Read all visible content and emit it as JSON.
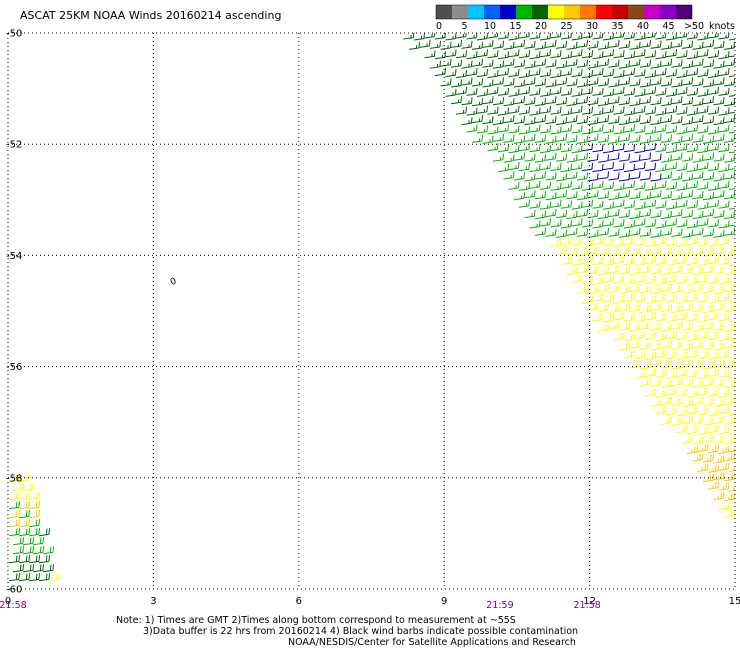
{
  "header": {
    "title": "ASCAT 25KM NOAA Winds 20160214 ascending"
  },
  "chart_data": {
    "type": "scatter",
    "title": "ASCAT 25KM NOAA Winds 20160214 ascending",
    "xlim": [
      0,
      15
    ],
    "ylim": [
      -60,
      -50
    ],
    "x_ticks": [
      "0",
      "3",
      "6",
      "9",
      "12",
      "15"
    ],
    "y_ticks": [
      "-50",
      "-52",
      "-54",
      "-56",
      "-58",
      "-60"
    ],
    "y_tick_values": [
      -50,
      -52,
      -54,
      -56,
      -58,
      -60
    ],
    "grid": true,
    "legend": {
      "placement": "top-right",
      "unit_label": "knots",
      "labels": [
        "0",
        "5",
        "10",
        "15",
        "20",
        "25",
        "30",
        "35",
        "40",
        "45",
        ">50"
      ],
      "colors": [
        "#505050",
        "#8c8c8c",
        "#00c8ff",
        "#0064ff",
        "#0000c8",
        "#00b400",
        "#006400",
        "#ffff00",
        "#ffc800",
        "#ff7800",
        "#ff0000",
        "#c80000",
        "#8c4614",
        "#c800c8",
        "#8c00c8",
        "#500078"
      ]
    },
    "time_labels": [
      {
        "x": 0.0,
        "text": "21:58"
      },
      {
        "x": 10.15,
        "text": "21:59"
      },
      {
        "x": 11.95,
        "text": "21:58"
      }
    ],
    "annotation": {
      "x": 3.4,
      "y": -54.45,
      "text": "0"
    },
    "swaths": {
      "main": {
        "edge_top_x": 8.05,
        "edge_bottom_x": 15.0,
        "edge_bottom_y": -59.05,
        "regions": [
          {
            "from_y": -50.0,
            "to_y": -51.7,
            "wind_knots": 17,
            "color": "#006400"
          },
          {
            "from_y": -51.7,
            "to_y": -53.7,
            "wind_knots": 17,
            "color": "#00b400"
          },
          {
            "from_y": -52.1,
            "to_y": -52.7,
            "x_from": 11.8,
            "x_to": 13.3,
            "wind_knots": 12,
            "color": "#0000c8"
          },
          {
            "from_y": -53.7,
            "to_y": -59.05,
            "wind_knots": 22,
            "color": "#ffff00"
          },
          {
            "from_y": -57.4,
            "to_y": -58.5,
            "x_from": 13.3,
            "x_to": 15.0,
            "wind_knots": 26,
            "color": "#ffc800"
          }
        ]
      },
      "corner": {
        "x_from": 0.0,
        "x_to": 1.0,
        "from_y": -58.0,
        "to_y": -60.0,
        "colors": [
          "#ffff00",
          "#ffc800",
          "#00b400",
          "#006400"
        ]
      }
    }
  },
  "notes": {
    "line1": "Note: 1) Times are GMT 2)Times along bottom correspond to measurement at ~55S",
    "line2": "3)Data buffer is 22 hrs from 20160214 4) Black wind barbs indicate possible contamination",
    "line3": "NOAA/NESDIS/Center for Satellite Applications and Research"
  }
}
